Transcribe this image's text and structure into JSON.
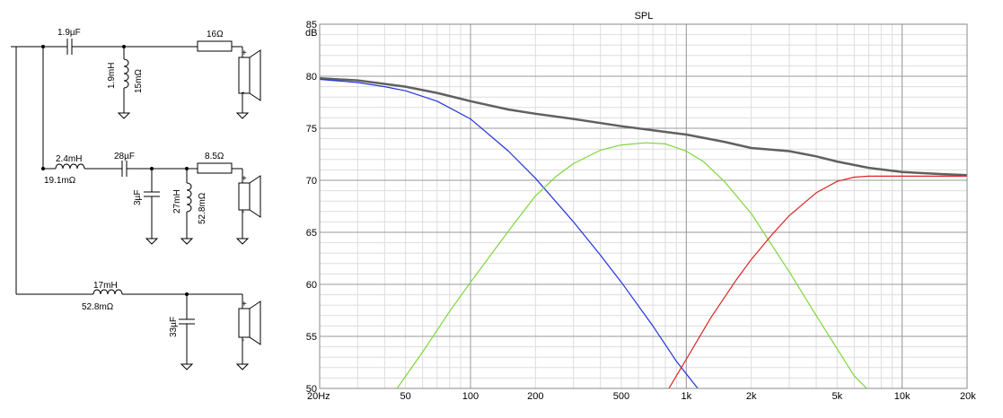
{
  "schematic": {
    "tweeter": {
      "cap_series": "1.9µF",
      "ind_shunt": "1.9mH",
      "ind_shunt_dcr": "15mΩ",
      "res_series": "16Ω"
    },
    "midrange": {
      "ind_series": "2.4mH",
      "ind_series_dcr": "19.1mΩ",
      "cap_series": "28µF",
      "cap_shunt": "3µF",
      "ind_shunt": "27mH",
      "ind_shunt_dcr": "52.8mΩ",
      "res_series": "8.5Ω"
    },
    "woofer": {
      "ind_series": "17mH",
      "ind_series_dcr": "52.8mΩ",
      "cap_shunt": "33µF"
    },
    "speaker_plus": "+",
    "speaker_minus": "-"
  },
  "chart_data": {
    "type": "line",
    "title": "SPL",
    "ylabel": "dB",
    "xscale": "log",
    "xlim": [
      20,
      20000
    ],
    "ylim": [
      50,
      85
    ],
    "x_ticks": [
      {
        "v": 20,
        "label": "20Hz"
      },
      {
        "v": 50,
        "label": "50"
      },
      {
        "v": 100,
        "label": "100"
      },
      {
        "v": 200,
        "label": "200"
      },
      {
        "v": 500,
        "label": "500"
      },
      {
        "v": 1000,
        "label": "1k"
      },
      {
        "v": 2000,
        "label": "2k"
      },
      {
        "v": 5000,
        "label": "5k"
      },
      {
        "v": 10000,
        "label": "10k"
      },
      {
        "v": 20000,
        "label": "20k"
      }
    ],
    "y_ticks": [
      {
        "v": 85,
        "label": "85"
      },
      {
        "v": 80,
        "label": "80"
      },
      {
        "v": 75,
        "label": "75"
      },
      {
        "v": 70,
        "label": "70"
      },
      {
        "v": 65,
        "label": "65"
      },
      {
        "v": 60,
        "label": "60"
      },
      {
        "v": 55,
        "label": "55"
      },
      {
        "v": 50,
        "label": "50"
      }
    ],
    "grid": true,
    "series": [
      {
        "color": "#606060",
        "width": 2.5,
        "points": [
          [
            20,
            79.8
          ],
          [
            30,
            79.6
          ],
          [
            50,
            79.0
          ],
          [
            70,
            78.4
          ],
          [
            100,
            77.6
          ],
          [
            150,
            76.8
          ],
          [
            200,
            76.4
          ],
          [
            300,
            75.9
          ],
          [
            500,
            75.2
          ],
          [
            700,
            74.8
          ],
          [
            1000,
            74.4
          ],
          [
            1500,
            73.7
          ],
          [
            2000,
            73.1
          ],
          [
            3000,
            72.8
          ],
          [
            4000,
            72.3
          ],
          [
            5000,
            71.8
          ],
          [
            7000,
            71.2
          ],
          [
            10000,
            70.8
          ],
          [
            15000,
            70.6
          ],
          [
            20000,
            70.5
          ]
        ]
      },
      {
        "color": "#2233dd",
        "width": 1.2,
        "points": [
          [
            20,
            79.7
          ],
          [
            30,
            79.4
          ],
          [
            40,
            79.0
          ],
          [
            50,
            78.6
          ],
          [
            70,
            77.6
          ],
          [
            100,
            75.9
          ],
          [
            150,
            72.8
          ],
          [
            200,
            70.2
          ],
          [
            300,
            66.0
          ],
          [
            400,
            62.8
          ],
          [
            500,
            60.2
          ],
          [
            700,
            56.0
          ],
          [
            900,
            52.6
          ],
          [
            1150,
            49.8
          ]
        ]
      },
      {
        "color": "#7fd63a",
        "width": 1.2,
        "points": [
          [
            45,
            49.8
          ],
          [
            60,
            53.5
          ],
          [
            80,
            57.4
          ],
          [
            100,
            60.2
          ],
          [
            130,
            63.4
          ],
          [
            160,
            65.9
          ],
          [
            200,
            68.5
          ],
          [
            250,
            70.4
          ],
          [
            300,
            71.6
          ],
          [
            400,
            72.9
          ],
          [
            500,
            73.4
          ],
          [
            650,
            73.6
          ],
          [
            800,
            73.5
          ],
          [
            1000,
            72.8
          ],
          [
            1200,
            71.8
          ],
          [
            1500,
            69.9
          ],
          [
            2000,
            66.8
          ],
          [
            3000,
            61.2
          ],
          [
            4000,
            57.0
          ],
          [
            5000,
            53.8
          ],
          [
            6000,
            51.2
          ],
          [
            7000,
            49.8
          ]
        ]
      },
      {
        "color": "#dd2222",
        "width": 1.2,
        "points": [
          [
            820,
            49.8
          ],
          [
            1000,
            52.8
          ],
          [
            1300,
            56.8
          ],
          [
            1700,
            60.4
          ],
          [
            2000,
            62.4
          ],
          [
            2500,
            64.8
          ],
          [
            3000,
            66.6
          ],
          [
            4000,
            68.8
          ],
          [
            5000,
            69.9
          ],
          [
            6000,
            70.3
          ],
          [
            7000,
            70.4
          ],
          [
            9000,
            70.4
          ],
          [
            12000,
            70.4
          ],
          [
            20000,
            70.4
          ]
        ]
      }
    ]
  }
}
